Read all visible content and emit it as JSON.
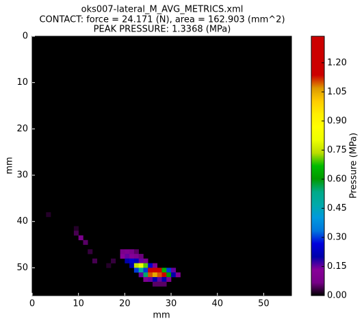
{
  "chart_data": {
    "type": "heatmap",
    "title": [
      "oks007-lateral_M_AVG_METRICS.xml",
      "CONTACT: force = 24.171 (N), area = 162.903 (mm^2)",
      "PEAK PRESSURE: 1.3368 (MPa)"
    ],
    "x_label": "mm",
    "y_label": "mm",
    "colorbar_label": "Pressure (MPa)",
    "colormap": "nipy_spectral",
    "xlim": [
      0,
      56
    ],
    "ylim": [
      56,
      0
    ],
    "xticks": [
      0,
      10,
      20,
      30,
      40,
      50
    ],
    "yticks": [
      0,
      10,
      20,
      30,
      40,
      50
    ],
    "clim": [
      0,
      1.3368
    ],
    "cticks": [
      {
        "value": 0,
        "label": "0.00"
      },
      {
        "value": 0.15,
        "label": "0.15"
      },
      {
        "value": 0.3,
        "label": "0.30"
      },
      {
        "value": 0.45,
        "label": "0.45"
      },
      {
        "value": 0.6,
        "label": "0.60"
      },
      {
        "value": 0.75,
        "label": "0.75"
      },
      {
        "value": 0.9,
        "label": "0.90"
      },
      {
        "value": 1.05,
        "label": "1.05"
      },
      {
        "value": 1.2,
        "label": "1.20"
      }
    ],
    "x": [
      3,
      9,
      9,
      10,
      11,
      12,
      13,
      16,
      17,
      19,
      20,
      21,
      22,
      19,
      20,
      21,
      22,
      23,
      20,
      21,
      22,
      23,
      24,
      21,
      22,
      23,
      24,
      25,
      26,
      22,
      23,
      24,
      25,
      26,
      27,
      28,
      29,
      30,
      23,
      24,
      25,
      26,
      27,
      28,
      29,
      30,
      31,
      24,
      25,
      26,
      27,
      28,
      29,
      26,
      27,
      28
    ],
    "y": [
      38,
      41,
      42,
      43,
      44,
      46,
      48,
      49,
      48,
      46,
      46,
      46,
      46,
      47,
      47,
      47,
      47,
      47,
      48,
      48,
      48,
      48,
      48,
      49,
      49,
      49,
      49,
      49,
      49,
      50,
      50,
      50,
      50,
      50,
      50,
      50,
      50,
      50,
      51,
      51,
      51,
      51,
      51,
      51,
      51,
      51,
      51,
      52,
      52,
      52,
      52,
      52,
      52,
      53,
      53,
      53
    ],
    "values": [
      0.02,
      0.02,
      0.04,
      0.08,
      0.05,
      0.03,
      0.04,
      0.02,
      0.03,
      0.08,
      0.1,
      0.08,
      0.05,
      0.12,
      0.15,
      0.12,
      0.1,
      0.06,
      0.2,
      0.25,
      0.22,
      0.15,
      0.08,
      0.2,
      0.75,
      0.8,
      0.7,
      0.25,
      0.1,
      0.3,
      0.5,
      0.3,
      1.3368,
      1.15,
      1.15,
      0.65,
      0.3,
      0.15,
      0.15,
      0.55,
      1.1,
      1.05,
      1.1,
      1.2,
      0.6,
      0.2,
      0.1,
      0.1,
      0.15,
      0.2,
      0.15,
      0.2,
      0.1,
      0.05,
      0.05,
      0.05
    ]
  }
}
